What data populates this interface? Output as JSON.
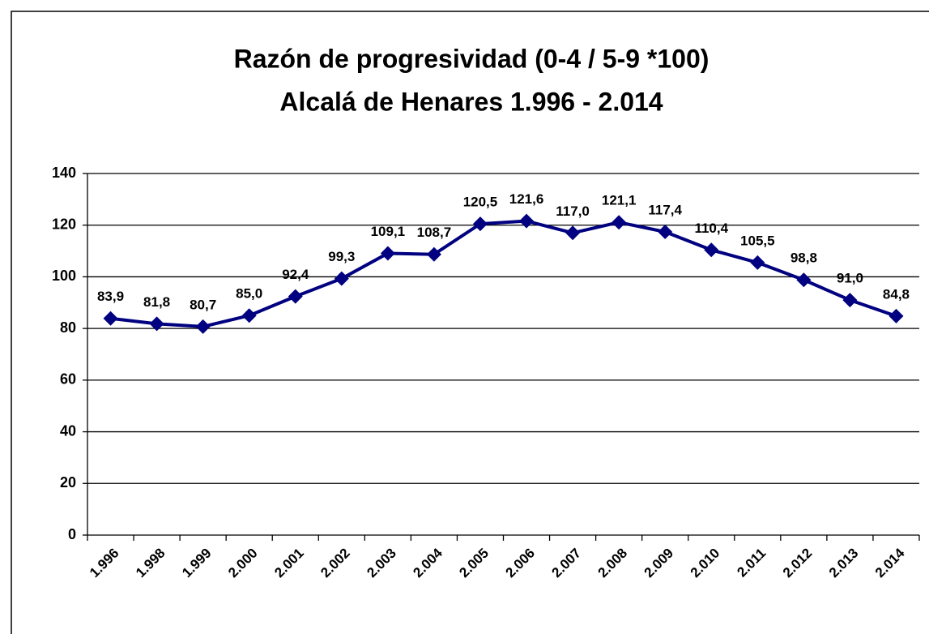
{
  "chart_data": {
    "type": "line",
    "title": "Razón de progresividad (0-4 / 5-9 *100)",
    "subtitle": "Alcalá de Henares 1.996 - 2.014",
    "categories": [
      "1.996",
      "1.998",
      "1.999",
      "2.000",
      "2.001",
      "2.002",
      "2.003",
      "2.004",
      "2.005",
      "2.006",
      "2.007",
      "2.008",
      "2.009",
      "2.010",
      "2.011",
      "2.012",
      "2.013",
      "2.014"
    ],
    "values": [
      83.9,
      81.8,
      80.7,
      85.0,
      92.4,
      99.3,
      109.1,
      108.7,
      120.5,
      121.6,
      117.0,
      121.1,
      117.4,
      110.4,
      105.5,
      98.8,
      91.0,
      84.8
    ],
    "value_labels": [
      "83,9",
      "81,8",
      "80,7",
      "85,0",
      "92,4",
      "99,3",
      "109,1",
      "108,7",
      "120,5",
      "121,6",
      "117,0",
      "121,1",
      "117,4",
      "110,4",
      "105,5",
      "98,8",
      "91,0",
      "84,8"
    ],
    "color": "#000080",
    "ylim": [
      0,
      140
    ],
    "yticks": [
      0,
      20,
      40,
      60,
      80,
      100,
      120,
      140
    ],
    "grid": true
  }
}
